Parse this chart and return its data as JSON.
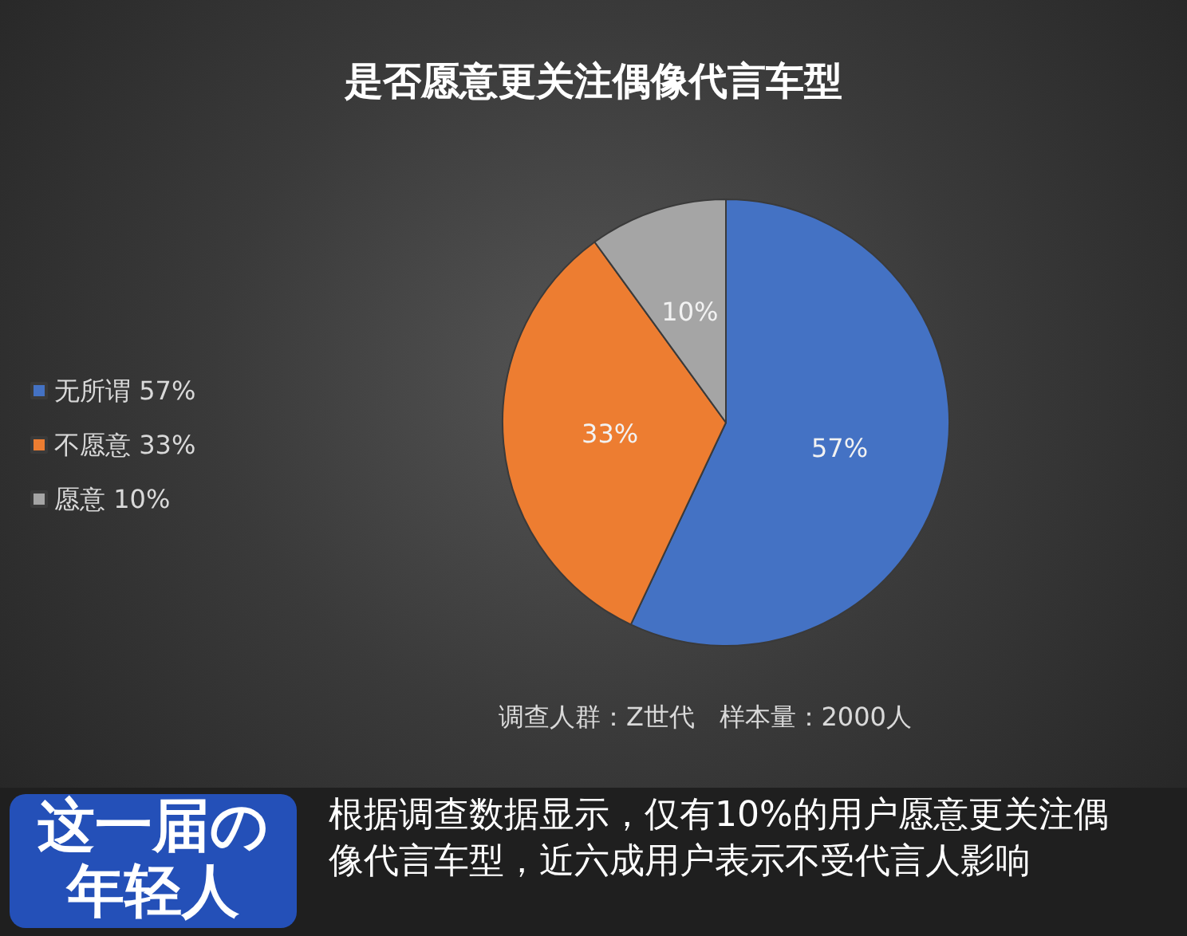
{
  "chart_data": {
    "type": "pie",
    "title": "是否愿意更关注偶像代言车型",
    "categories": [
      "无所谓",
      "不愿意",
      "愿意"
    ],
    "values": [
      57,
      33,
      10
    ],
    "colors": [
      "#4472c4",
      "#ed7d31",
      "#a5a5a5"
    ],
    "value_labels": [
      "57%",
      "33%",
      "10%"
    ],
    "legend": "left",
    "annotations": [
      "调查人群：Z世代   样本量：2000人",
      "这一届の年轻人",
      "根据调查数据显示，仅有10%的用户愿意更关注偶像代言车型，近六成用户表示不受代言人影响"
    ]
  }
}
